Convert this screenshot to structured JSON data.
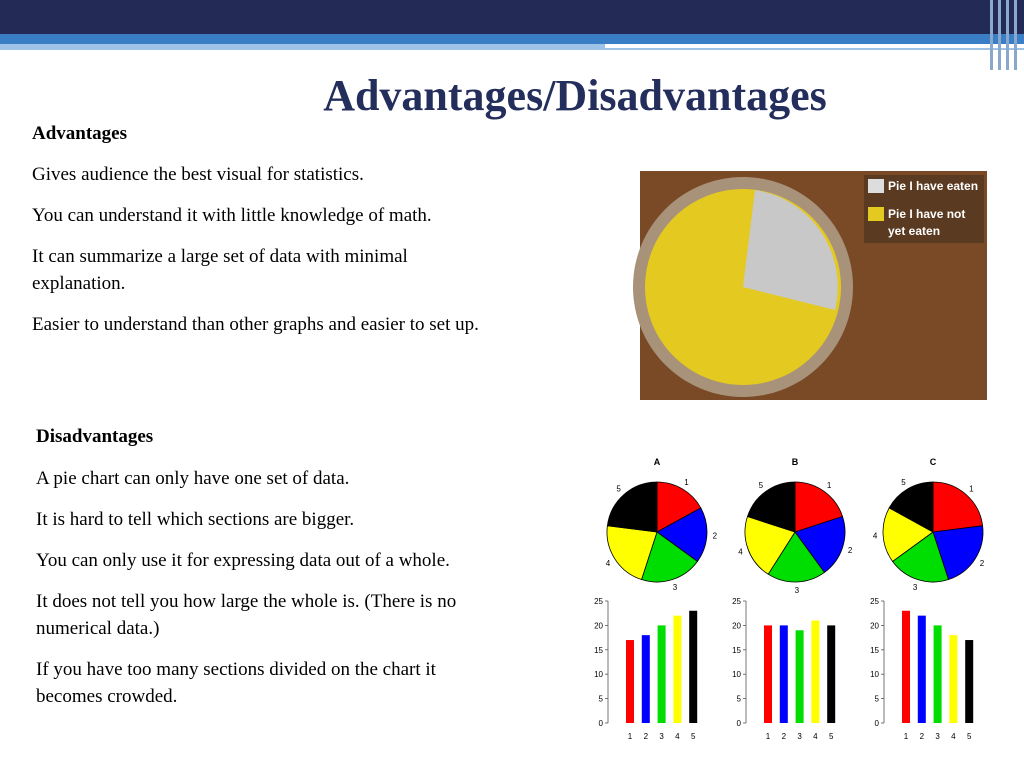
{
  "header": {
    "title": "Advantages/Disadvantages"
  },
  "advantages": {
    "heading": "Advantages",
    "items": [
      "Gives audience the best visual for statistics.",
      "You can understand it with little knowledge of math.",
      "It can summarize a large set of data with minimal explanation.",
      "Easier to understand than other graphs and easier to set up."
    ]
  },
  "disadvantages": {
    "heading": "Disadvantages",
    "items": [
      "A pie chart can only have one set of data.",
      "It is hard to tell which sections are bigger.",
      "You can only use it for expressing data out of a whole.",
      "It does not tell you how large the whole is. (There is no numerical data.)",
      "If you have too many sections divided on the chart it becomes crowded."
    ]
  },
  "photo": {
    "legend": [
      "Pie I have eaten",
      "Pie I have not yet eaten"
    ]
  },
  "charts": [
    {
      "type": "pie-bar",
      "title": "A",
      "categories": [
        "1",
        "2",
        "3",
        "4",
        "5"
      ],
      "colors": [
        "#ff0000",
        "#0000ff",
        "#00dd00",
        "#ffff00",
        "#000000"
      ],
      "values": [
        17,
        18,
        20,
        22,
        23
      ],
      "ylim": [
        0,
        25
      ],
      "yticks": [
        0,
        5,
        10,
        15,
        20,
        25
      ]
    },
    {
      "type": "pie-bar",
      "title": "B",
      "categories": [
        "1",
        "2",
        "3",
        "4",
        "5"
      ],
      "colors": [
        "#ff0000",
        "#0000ff",
        "#00dd00",
        "#ffff00",
        "#000000"
      ],
      "values": [
        20,
        20,
        19,
        21,
        20
      ],
      "ylim": [
        0,
        25
      ],
      "yticks": [
        0,
        5,
        10,
        15,
        20,
        25
      ]
    },
    {
      "type": "pie-bar",
      "title": "C",
      "categories": [
        "1",
        "2",
        "3",
        "4",
        "5"
      ],
      "colors": [
        "#ff0000",
        "#0000ff",
        "#00dd00",
        "#ffff00",
        "#000000"
      ],
      "values": [
        23,
        22,
        20,
        18,
        17
      ],
      "ylim": [
        0,
        25
      ],
      "yticks": [
        0,
        5,
        10,
        15,
        20,
        25
      ]
    }
  ]
}
